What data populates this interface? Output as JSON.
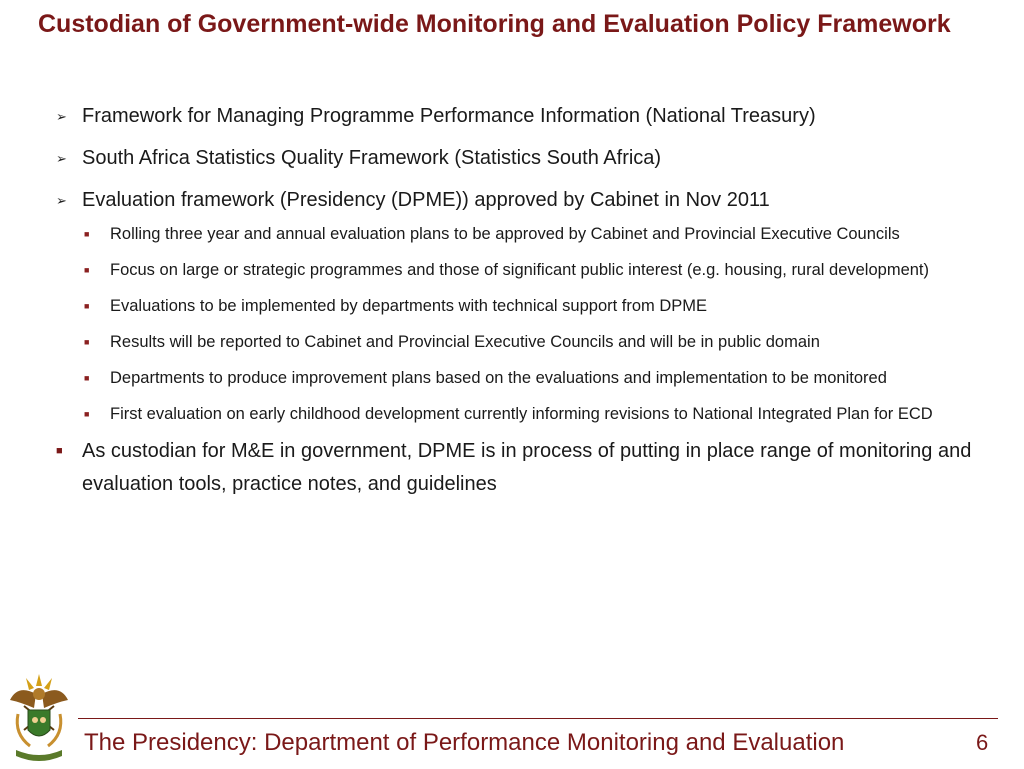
{
  "slide": {
    "title": "Custodian of Government-wide Monitoring and Evaluation Policy Framework",
    "bullets": [
      {
        "marker": "➢",
        "text": "Framework for Managing Programme Performance Information (National Treasury)"
      },
      {
        "marker": "➢",
        "text": "South Africa Statistics Quality Framework (Statistics South Africa)"
      },
      {
        "marker": "➢",
        "text": "Evaluation framework (Presidency (DPME)) approved by Cabinet in Nov 2011",
        "sub": [
          "Rolling three year and annual evaluation plans to be approved by Cabinet and Provincial Executive Councils",
          "Focus on large or strategic programmes and those of significant public interest (e.g. housing, rural development)",
          "Evaluations to be implemented by departments with technical support from DPME",
          "Results will be reported to Cabinet and Provincial Executive Councils and will be in public domain",
          "Departments to produce improvement plans based on the evaluations and implementation to be monitored",
          "First evaluation on early childhood development currently informing revisions to National Integrated Plan for ECD"
        ]
      },
      {
        "marker": "■",
        "text": "As custodian for M&E in government, DPME is in process of putting in place range of monitoring  and evaluation tools, practice notes, and guidelines"
      }
    ],
    "sub_marker": "■"
  },
  "footer": {
    "text": "The Presidency: Department of Performance Monitoring and Evaluation",
    "page_number": "6",
    "logo": "south-africa-coat-of-arms"
  },
  "colors": {
    "accent": "#7a1818",
    "body_text": "#1a1a1a",
    "background": "#ffffff"
  }
}
